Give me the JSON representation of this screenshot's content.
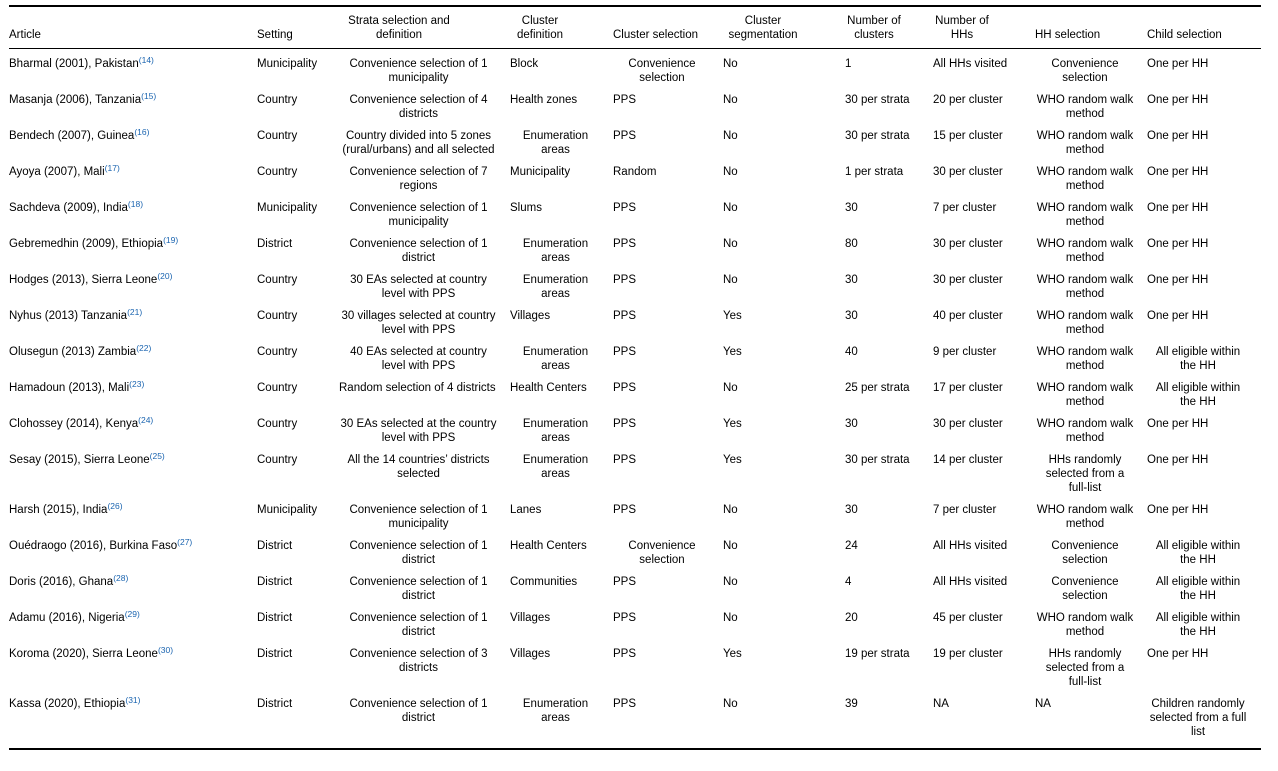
{
  "page": {
    "background": "#ffffff",
    "text_color": "#000000",
    "rule_color": "#000000",
    "ref_link_color": "#1a64b0"
  },
  "table": {
    "columns": [
      {
        "id": "article",
        "label": "Article"
      },
      {
        "id": "setting",
        "label": "Setting"
      },
      {
        "id": "strata-selection",
        "label": "Strata selection and definition"
      },
      {
        "id": "cluster-definition",
        "label": "Cluster definition"
      },
      {
        "id": "cluster-selection",
        "label": "Cluster selection"
      },
      {
        "id": "cluster-segmentation",
        "label": "Cluster segmentation"
      },
      {
        "id": "number-of-clusters",
        "label": "Number of clusters"
      },
      {
        "id": "number-of-hhs",
        "label": "Number of HHs"
      },
      {
        "id": "hh-selection",
        "label": "HH selection"
      },
      {
        "id": "child-selection",
        "label": "Child selection"
      }
    ],
    "rows": [
      {
        "article": "Bharmal (2001), Pakistan",
        "ref": "(14)",
        "setting": "Municipality",
        "strata": "Convenience selection of 1 municipality",
        "cluster_definition": "Block",
        "cluster_selection": "Convenience selection",
        "cluster_segmentation": "No",
        "number_of_clusters": "1",
        "number_of_hhs": "All HHs visited",
        "hh_selection": "Convenience selection",
        "child_selection": "One per HH"
      },
      {
        "article": "Masanja (2006), Tanzania",
        "ref": "(15)",
        "setting": "Country",
        "strata": "Convenience selection of 4 districts",
        "cluster_definition": "Health zones",
        "cluster_selection": "PPS",
        "cluster_segmentation": "No",
        "number_of_clusters": "30 per strata",
        "number_of_hhs": "20 per cluster",
        "hh_selection": "WHO random walk method",
        "child_selection": "One per HH"
      },
      {
        "article": "Bendech (2007), Guinea",
        "ref": "(16)",
        "setting": "Country",
        "strata": "Country divided into 5 zones (rural/urbans) and all selected",
        "cluster_definition": "Enumeration areas",
        "cluster_selection": "PPS",
        "cluster_segmentation": "No",
        "number_of_clusters": "30 per strata",
        "number_of_hhs": "15 per cluster",
        "hh_selection": "WHO random walk method",
        "child_selection": "One per HH"
      },
      {
        "article": "Ayoya (2007), Mali",
        "ref": "(17)",
        "setting": "Country",
        "strata": "Convenience selection of 7 regions",
        "cluster_definition": "Municipality",
        "cluster_selection": "Random",
        "cluster_segmentation": "No",
        "number_of_clusters": "1 per strata",
        "number_of_hhs": "30 per cluster",
        "hh_selection": "WHO random walk method",
        "child_selection": "One per HH"
      },
      {
        "article": "Sachdeva (2009), India",
        "ref": "(18)",
        "setting": "Municipality",
        "strata": "Convenience selection of 1 municipality",
        "cluster_definition": "Slums",
        "cluster_selection": "PPS",
        "cluster_segmentation": "No",
        "number_of_clusters": "30",
        "number_of_hhs": "7 per cluster",
        "hh_selection": "WHO random walk method",
        "child_selection": "One per HH"
      },
      {
        "article": "Gebremedhin (2009), Ethiopia",
        "ref": "(19)",
        "setting": "District",
        "strata": "Convenience selection of 1 district",
        "cluster_definition": "Enumeration areas",
        "cluster_selection": "PPS",
        "cluster_segmentation": "No",
        "number_of_clusters": "80",
        "number_of_hhs": "30 per cluster",
        "hh_selection": "WHO random walk method",
        "child_selection": "One per HH"
      },
      {
        "article": "Hodges (2013), Sierra Leone",
        "ref": "(20)",
        "setting": "Country",
        "strata": "30 EAs selected at country level with PPS",
        "cluster_definition": "Enumeration areas",
        "cluster_selection": "PPS",
        "cluster_segmentation": "No",
        "number_of_clusters": "30",
        "number_of_hhs": "30 per cluster",
        "hh_selection": "WHO random walk method",
        "child_selection": "One per HH"
      },
      {
        "article": "Nyhus (2013) Tanzania",
        "ref": "(21)",
        "setting": "Country",
        "strata": "30 villages selected at country level with PPS",
        "cluster_definition": "Villages",
        "cluster_selection": "PPS",
        "cluster_segmentation": "Yes",
        "number_of_clusters": "30",
        "number_of_hhs": "40 per cluster",
        "hh_selection": "WHO random walk method",
        "child_selection": "One per HH"
      },
      {
        "article": "Olusegun (2013) Zambia",
        "ref": "(22)",
        "setting": "Country",
        "strata": "40 EAs selected at country level with PPS",
        "cluster_definition": "Enumeration areas",
        "cluster_selection": "PPS",
        "cluster_segmentation": "Yes",
        "number_of_clusters": "40",
        "number_of_hhs": "9 per cluster",
        "hh_selection": "WHO random walk method",
        "child_selection": "All eligible within the HH"
      },
      {
        "article": "Hamadoun (2013), Mali",
        "ref": "(23)",
        "setting": "Country",
        "strata": "Random selection of 4 districts",
        "cluster_definition": "Health Centers",
        "cluster_selection": "PPS",
        "cluster_segmentation": "No",
        "number_of_clusters": "25 per strata",
        "number_of_hhs": "17 per cluster",
        "hh_selection": "WHO random walk method",
        "child_selection": "All eligible within the HH"
      },
      {
        "article": "Clohossey (2014), Kenya",
        "ref": "(24)",
        "setting": "Country",
        "strata": "30 EAs selected at the country level with PPS",
        "cluster_definition": "Enumeration areas",
        "cluster_selection": "PPS",
        "cluster_segmentation": "Yes",
        "number_of_clusters": "30",
        "number_of_hhs": "30 per cluster",
        "hh_selection": "WHO random walk method",
        "child_selection": "One per HH"
      },
      {
        "article": "Sesay (2015), Sierra Leone",
        "ref": "(25)",
        "setting": "Country",
        "strata": "All the 14 countries’ districts selected",
        "cluster_definition": "Enumeration areas",
        "cluster_selection": "PPS",
        "cluster_segmentation": "Yes",
        "number_of_clusters": "30 per strata",
        "number_of_hhs": "14 per cluster",
        "hh_selection": "HHs randomly selected from a full-list",
        "child_selection": "One per HH"
      },
      {
        "article": "Harsh (2015), India",
        "ref": "(26)",
        "setting": "Municipality",
        "strata": "Convenience selection of 1 municipality",
        "cluster_definition": "Lanes",
        "cluster_selection": "PPS",
        "cluster_segmentation": "No",
        "number_of_clusters": "30",
        "number_of_hhs": "7 per cluster",
        "hh_selection": "WHO random walk method",
        "child_selection": "One per HH"
      },
      {
        "article": "Ouédraogo (2016), Burkina Faso",
        "ref": "(27)",
        "setting": "District",
        "strata": "Convenience selection of 1 district",
        "cluster_definition": "Health Centers",
        "cluster_selection": "Convenience selection",
        "cluster_segmentation": "No",
        "number_of_clusters": "24",
        "number_of_hhs": "All HHs visited",
        "hh_selection": "Convenience selection",
        "child_selection": "All eligible within the HH"
      },
      {
        "article": "Doris (2016), Ghana",
        "ref": "(28)",
        "setting": "District",
        "strata": "Convenience selection of 1 district",
        "cluster_definition": "Communities",
        "cluster_selection": "PPS",
        "cluster_segmentation": "No",
        "number_of_clusters": "4",
        "number_of_hhs": "All HHs visited",
        "hh_selection": "Convenience selection",
        "child_selection": "All eligible within the HH"
      },
      {
        "article": "Adamu (2016), Nigeria",
        "ref": "(29)",
        "setting": "District",
        "strata": "Convenience selection of 1 district",
        "cluster_definition": "Villages",
        "cluster_selection": "PPS",
        "cluster_segmentation": "No",
        "number_of_clusters": "20",
        "number_of_hhs": "45 per cluster",
        "hh_selection": "WHO random walk method",
        "child_selection": "All eligible within the HH"
      },
      {
        "article": "Koroma (2020), Sierra Leone",
        "ref": "(30)",
        "setting": "District",
        "strata": "Convenience selection of 3 districts",
        "cluster_definition": "Villages",
        "cluster_selection": "PPS",
        "cluster_segmentation": "Yes",
        "number_of_clusters": "19 per strata",
        "number_of_hhs": "19 per cluster",
        "hh_selection": "HHs randomly selected from a full-list",
        "child_selection": "One per HH"
      },
      {
        "article": "Kassa (2020), Ethiopia",
        "ref": "(31)",
        "setting": "District",
        "strata": "Convenience selection of 1 district",
        "cluster_definition": "Enumeration areas",
        "cluster_selection": "PPS",
        "cluster_segmentation": "No",
        "number_of_clusters": "39",
        "number_of_hhs": "NA",
        "hh_selection": "NA",
        "child_selection": "Children randomly selected from a full list"
      }
    ]
  }
}
